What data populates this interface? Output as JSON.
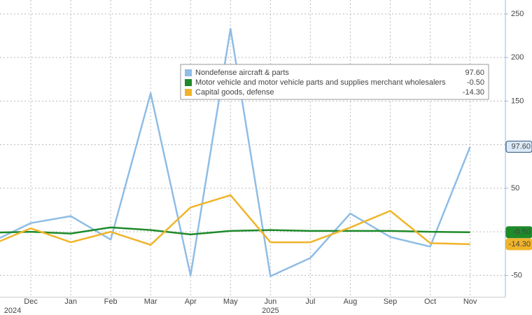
{
  "chart_data": {
    "type": "line",
    "categories": [
      null,
      "Dec",
      "Jan",
      "Feb",
      "Mar",
      "Apr",
      "May",
      "Jun",
      "Jul",
      "Aug",
      "Sep",
      "Oct",
      "Nov"
    ],
    "years": [
      {
        "label": "2024",
        "first_index": 0,
        "last_index": 1
      },
      {
        "label": "2025",
        "first_index": 2,
        "last_index": 12
      }
    ],
    "series": [
      {
        "name": "Nondefense aircraft & parts",
        "color": "#8fbde6",
        "values": [
          -12,
          10,
          18,
          -9,
          159,
          -50,
          233,
          -51,
          -30,
          21,
          -6,
          -17,
          97.6
        ],
        "value_labels": [
          "97.60"
        ]
      },
      {
        "name": "Motor vehicle and motor vehicle parts and supplies merchant wholesalers",
        "color": "#1e8a2a",
        "values": [
          -1,
          0,
          -2,
          5,
          2,
          -3,
          1,
          2,
          1,
          1,
          1,
          0,
          -0.5
        ],
        "value_labels": [
          "-0.50"
        ]
      },
      {
        "name": "Capital goods, defense",
        "color": "#f0b429",
        "values": [
          -15,
          4,
          -12,
          0,
          -15,
          28,
          42,
          -12,
          -12,
          5,
          24,
          -13,
          -14.3
        ],
        "value_labels": [
          "-14.30"
        ]
      }
    ],
    "ylim": [
      -75,
      266
    ],
    "yticks": [
      -50,
      0,
      50,
      100,
      150,
      200,
      250
    ],
    "grid": true
  }
}
